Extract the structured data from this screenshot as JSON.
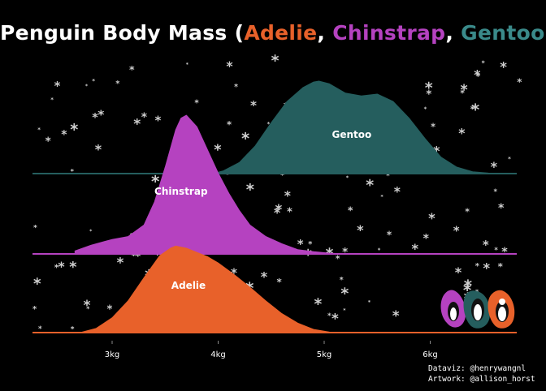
{
  "title": {
    "prefix": "Penguin Body Mass (",
    "sep1": ", ",
    "sep2": ", ",
    "suffix": ")"
  },
  "credits": {
    "dataviz": "Dataviz: @henrywangnl",
    "artwork": "Artwork: @allison_horst"
  },
  "colors": {
    "background": "#000000",
    "adelie": "#E8612A",
    "chinstrap": "#B542C0",
    "gentoo": "#255E5E",
    "snow": "#cfcfcf",
    "text": "#ffffff"
  },
  "icon": "penguin-trio-icon",
  "chart_data": {
    "type": "area",
    "title": "Penguin Body Mass (Adelie, Chinstrap, Gentoo)",
    "xlabel": "",
    "ylabel": "",
    "grid": false,
    "legend": "none",
    "xlim": [
      2600,
      6800
    ],
    "ticks": [
      {
        "value": 3000,
        "label": "3kg"
      },
      {
        "value": 4000,
        "label": "4kg"
      },
      {
        "value": 5000,
        "label": "5kg"
      },
      {
        "value": 6000,
        "label": "6kg"
      }
    ],
    "series": [
      {
        "name": "Gentoo",
        "color": "#255E5E",
        "x": [
          3950,
          4050,
          4200,
          4350,
          4500,
          4650,
          4800,
          4900,
          4950,
          5050,
          5200,
          5350,
          5500,
          5650,
          5800,
          5950,
          6100,
          6250,
          6400,
          6550,
          6700
        ],
        "density": [
          0.0,
          0.03,
          0.12,
          0.3,
          0.55,
          0.78,
          0.93,
          0.99,
          1.0,
          0.97,
          0.87,
          0.84,
          0.86,
          0.78,
          0.6,
          0.38,
          0.18,
          0.07,
          0.02,
          0.005,
          0.0
        ]
      },
      {
        "name": "Chinstrap",
        "color": "#B542C0",
        "x": [
          2650,
          2800,
          3000,
          3150,
          3300,
          3400,
          3500,
          3600,
          3650,
          3700,
          3800,
          3900,
          4000,
          4100,
          4200,
          4300,
          4450,
          4600,
          4750,
          4900,
          5050,
          5200
        ],
        "density": [
          0.02,
          0.06,
          0.1,
          0.12,
          0.2,
          0.36,
          0.6,
          0.86,
          0.94,
          0.96,
          0.88,
          0.72,
          0.56,
          0.42,
          0.3,
          0.2,
          0.12,
          0.07,
          0.03,
          0.015,
          0.005,
          0.0
        ]
      },
      {
        "name": "Adelie",
        "color": "#E8612A",
        "x": [
          2700,
          2850,
          3000,
          3150,
          3300,
          3450,
          3550,
          3600,
          3700,
          3800,
          3900,
          4000,
          4150,
          4300,
          4450,
          4600,
          4750,
          4900,
          5050,
          5200
        ],
        "density": [
          0.0,
          0.04,
          0.14,
          0.3,
          0.52,
          0.73,
          0.8,
          0.82,
          0.8,
          0.76,
          0.72,
          0.66,
          0.55,
          0.43,
          0.3,
          0.18,
          0.09,
          0.03,
          0.005,
          0.0
        ]
      }
    ]
  }
}
